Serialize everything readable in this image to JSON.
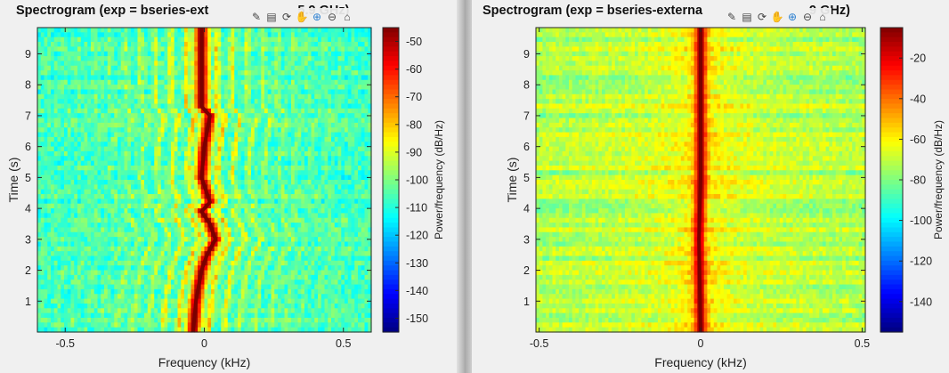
{
  "chart_data": [
    {
      "type": "heatmap",
      "title": "Spectrogram (exp = bseries-ext",
      "title_tail": "5.9 GHz)",
      "xlabel": "Frequency (kHz)",
      "ylabel": "Time (s)",
      "xlim": [
        -0.6,
        0.6
      ],
      "ylim": [
        0,
        9.85
      ],
      "xticks": [
        -0.5,
        0,
        0.5
      ],
      "xtick_labels": [
        "-0.5",
        "0",
        "0.5"
      ],
      "yticks": [
        1,
        2,
        3,
        4,
        5,
        6,
        7,
        8,
        9
      ],
      "ytick_labels": [
        "1",
        "2",
        "3",
        "4",
        "5",
        "6",
        "7",
        "8",
        "9"
      ],
      "colormap": "jet",
      "colorbar": {
        "label": "Power/frequency (dB/Hz)",
        "range": [
          -155,
          -45
        ],
        "ticks": [
          -50,
          -60,
          -70,
          -80,
          -90,
          -100,
          -110,
          -120,
          -130,
          -140,
          -150
        ],
        "tick_labels": [
          "-50",
          "-60",
          "-70",
          "-80",
          "-90",
          "-100",
          "-110",
          "-120",
          "-130",
          "-140",
          "-150"
        ]
      },
      "carrier_track": {
        "time_s": [
          0,
          1,
          2,
          2.5,
          3,
          3.5,
          3.9,
          4.2,
          5,
          6,
          7,
          7.3,
          8,
          9,
          9.85
        ],
        "freq_khz": [
          -0.04,
          -0.03,
          -0.01,
          0.01,
          0.04,
          0.02,
          -0.01,
          0.02,
          -0.01,
          0.0,
          0.02,
          -0.01,
          -0.01,
          -0.01,
          -0.01
        ]
      },
      "peak_db": -47,
      "background_db": -105
    },
    {
      "type": "heatmap",
      "title": "Spectrogram (exp = bseries-externa",
      "title_tail": "9 GHz)",
      "xlabel": "Frequency (kHz)",
      "ylabel": "Time (s)",
      "xlim": [
        -0.51,
        0.51
      ],
      "ylim": [
        0,
        9.85
      ],
      "xticks": [
        -0.5,
        0,
        0.5
      ],
      "xtick_labels": [
        "-0.5",
        "0",
        "0.5"
      ],
      "yticks": [
        1,
        2,
        3,
        4,
        5,
        6,
        7,
        8,
        9
      ],
      "ytick_labels": [
        "1",
        "2",
        "3",
        "4",
        "5",
        "6",
        "7",
        "8",
        "9"
      ],
      "colormap": "jet",
      "colorbar": {
        "label": "Power/frequency (dB/Hz)",
        "range": [
          -155,
          -5
        ],
        "ticks": [
          -20,
          -40,
          -60,
          -80,
          -100,
          -120,
          -140
        ],
        "tick_labels": [
          "-20",
          "-40",
          "-60",
          "-80",
          "-100",
          "-120",
          "-140"
        ]
      },
      "carrier_track": {
        "time_s": [
          0,
          3,
          5,
          7,
          9.85
        ],
        "freq_khz": [
          0.0,
          -0.005,
          0.0,
          0.0,
          0.0
        ]
      },
      "peak_db": -10,
      "background_db": -68
    }
  ]
}
